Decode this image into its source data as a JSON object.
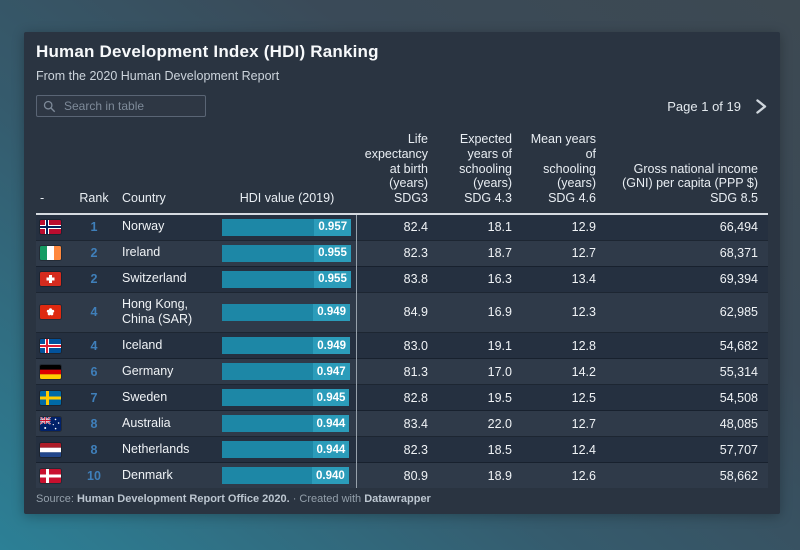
{
  "chart_data": {
    "type": "table",
    "title": "Human Development Index (HDI) Ranking",
    "subtitle": "From the 2020 Human Development Report",
    "columns": [
      "-",
      "Rank",
      "Country",
      "HDI value (2019)",
      "Life expectancy at birth (years) SDG3",
      "Expected years of schooling (years) SDG 4.3",
      "Mean years of schooling (years) SDG 4.6",
      "Gross national income (GNI) per capita (PPP $) SDG 8.5"
    ],
    "rows": [
      {
        "flag": "norway",
        "rank": "1",
        "country": "Norway",
        "hdi": "0.957",
        "life": "82.4",
        "expected": "18.1",
        "mean": "12.9",
        "gni": "66,494"
      },
      {
        "flag": "ireland",
        "rank": "2",
        "country": "Ireland",
        "hdi": "0.955",
        "life": "82.3",
        "expected": "18.7",
        "mean": "12.7",
        "gni": "68,371"
      },
      {
        "flag": "switzerland",
        "rank": "2",
        "country": "Switzerland",
        "hdi": "0.955",
        "life": "83.8",
        "expected": "16.3",
        "mean": "13.4",
        "gni": "69,394"
      },
      {
        "flag": "hongkong",
        "rank": "4",
        "country": "Hong Kong, China (SAR)",
        "hdi": "0.949",
        "life": "84.9",
        "expected": "16.9",
        "mean": "12.3",
        "gni": "62,985"
      },
      {
        "flag": "iceland",
        "rank": "4",
        "country": "Iceland",
        "hdi": "0.949",
        "life": "83.0",
        "expected": "19.1",
        "mean": "12.8",
        "gni": "54,682"
      },
      {
        "flag": "germany",
        "rank": "6",
        "country": "Germany",
        "hdi": "0.947",
        "life": "81.3",
        "expected": "17.0",
        "mean": "14.2",
        "gni": "55,314"
      },
      {
        "flag": "sweden",
        "rank": "7",
        "country": "Sweden",
        "hdi": "0.945",
        "life": "82.8",
        "expected": "19.5",
        "mean": "12.5",
        "gni": "54,508"
      },
      {
        "flag": "australia",
        "rank": "8",
        "country": "Australia",
        "hdi": "0.944",
        "life": "83.4",
        "expected": "22.0",
        "mean": "12.7",
        "gni": "48,085"
      },
      {
        "flag": "netherlands",
        "rank": "8",
        "country": "Netherlands",
        "hdi": "0.944",
        "life": "82.3",
        "expected": "18.5",
        "mean": "12.4",
        "gni": "57,707"
      },
      {
        "flag": "denmark",
        "rank": "10",
        "country": "Denmark",
        "hdi": "0.940",
        "life": "80.9",
        "expected": "18.9",
        "mean": "12.6",
        "gni": "58,662"
      }
    ],
    "hdi_bar_scale_max": 0.96,
    "source": "Human Development Report Office 2020.",
    "created_with": "Datawrapper"
  },
  "controls": {
    "search_placeholder": "Search in table",
    "search_icon": "magnifier-icon",
    "page_label": "Page 1 of 19",
    "next_icon": "chevron-right-icon"
  },
  "footer": {
    "prefix": "Source: ",
    "source": "Human Development Report Office 2020.",
    "separator": "·",
    "created": "Created with",
    "brand": "Datawrapper"
  },
  "colors": {
    "card_background": "#2a3441",
    "row_odd": "#253040",
    "row_even": "#2f3a49",
    "bar": "#1d87a6",
    "bar_label_background": "#2b9cba",
    "rank_text": "#3f7fba",
    "header_rule": "#d5dae0",
    "column_divider": "#97a1ab",
    "background_teal": "#2c8096",
    "background_slate": "#3d4952"
  }
}
